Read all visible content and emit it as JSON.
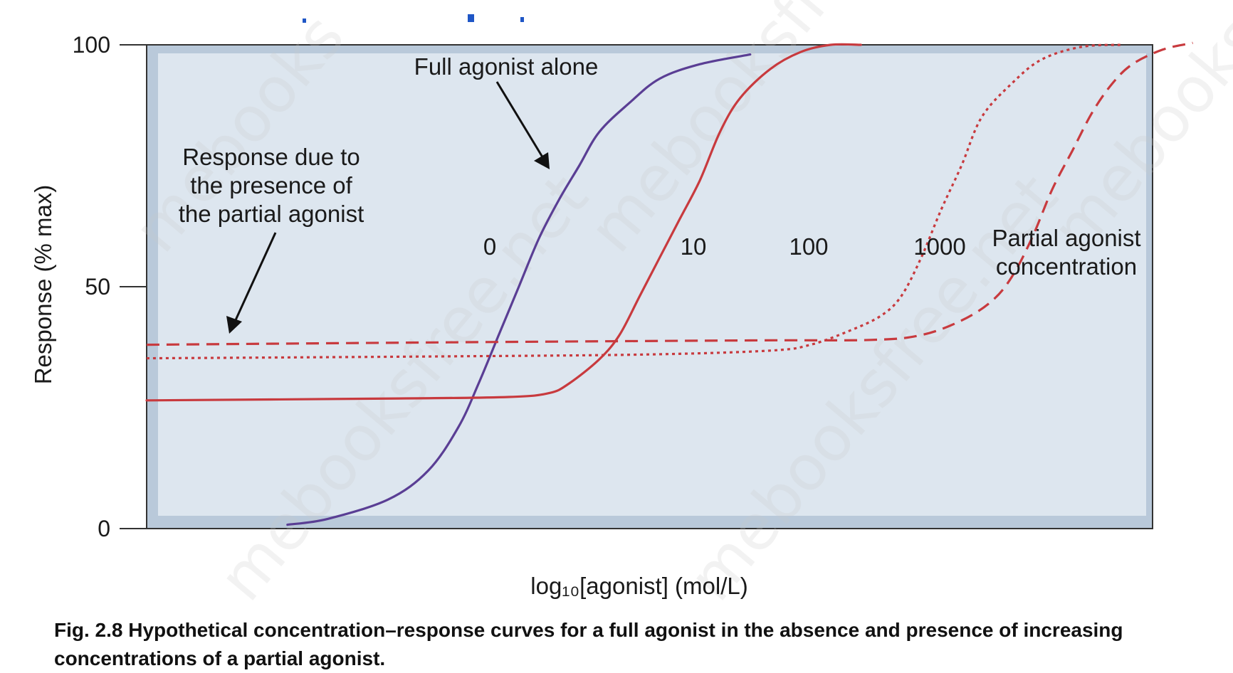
{
  "chart_data": {
    "type": "line",
    "xlabel": "log₁₀[agonist] (mol/L)",
    "ylabel": "Response (% max)",
    "ylim": [
      0,
      100
    ],
    "yticks": [
      0,
      50,
      100
    ],
    "grid": false,
    "series": [
      {
        "label": "0",
        "color": "#5a3e94",
        "style": "solid",
        "points": [
          [
            0.14,
            0.8
          ],
          [
            0.18,
            2
          ],
          [
            0.24,
            6
          ],
          [
            0.28,
            12
          ],
          [
            0.31,
            21
          ],
          [
            0.33,
            30
          ],
          [
            0.35,
            40
          ],
          [
            0.37,
            50
          ],
          [
            0.39,
            60
          ],
          [
            0.41,
            68
          ],
          [
            0.43,
            75
          ],
          [
            0.45,
            82
          ],
          [
            0.48,
            88
          ],
          [
            0.51,
            93
          ],
          [
            0.55,
            96
          ],
          [
            0.6,
            98
          ]
        ]
      },
      {
        "label": "10",
        "color": "#c83a3e",
        "style": "solid",
        "points": [
          [
            0.0,
            26.5
          ],
          [
            0.25,
            26.9
          ],
          [
            0.36,
            27.2
          ],
          [
            0.4,
            28
          ],
          [
            0.42,
            30
          ],
          [
            0.45,
            35
          ],
          [
            0.47,
            40
          ],
          [
            0.49,
            48
          ],
          [
            0.51,
            56
          ],
          [
            0.53,
            64
          ],
          [
            0.55,
            72
          ],
          [
            0.57,
            82
          ],
          [
            0.59,
            89
          ],
          [
            0.62,
            95
          ],
          [
            0.65,
            98.5
          ],
          [
            0.68,
            100
          ],
          [
            0.71,
            100
          ]
        ]
      },
      {
        "label": "100",
        "color": "#c83a3e",
        "style": "dotted",
        "points": [
          [
            0.0,
            35.2
          ],
          [
            0.3,
            35.6
          ],
          [
            0.5,
            36
          ],
          [
            0.62,
            36.8
          ],
          [
            0.66,
            38
          ],
          [
            0.7,
            41
          ],
          [
            0.73,
            44
          ],
          [
            0.75,
            48
          ],
          [
            0.77,
            56
          ],
          [
            0.79,
            66
          ],
          [
            0.81,
            75
          ],
          [
            0.83,
            85
          ],
          [
            0.86,
            92
          ],
          [
            0.89,
            97
          ],
          [
            0.93,
            99.6
          ],
          [
            0.97,
            100
          ]
        ]
      },
      {
        "label": "1000",
        "color": "#c83a3e",
        "style": "dashed",
        "points": [
          [
            0.0,
            38
          ],
          [
            0.3,
            38.5
          ],
          [
            0.6,
            38.9
          ],
          [
            0.72,
            39
          ],
          [
            0.77,
            40
          ],
          [
            0.81,
            43
          ],
          [
            0.84,
            47
          ],
          [
            0.86,
            52
          ],
          [
            0.88,
            60
          ],
          [
            0.9,
            70
          ],
          [
            0.92,
            78
          ],
          [
            0.94,
            86
          ],
          [
            0.96,
            92
          ],
          [
            0.98,
            96
          ],
          [
            1.01,
            99
          ],
          [
            1.04,
            100.4
          ]
        ]
      }
    ],
    "annotations": {
      "full_agonist": "Full agonist alone",
      "response_due": [
        "Response due to",
        "the presence of",
        "the partial agonist"
      ],
      "partial_conc": [
        "Partial agonist",
        "concentration"
      ]
    }
  },
  "watermark": [
    "mebooksfree.net",
    "mebooksfree.net",
    "mebooks",
    "mebooksfree.net",
    "mebooks"
  ],
  "caption": {
    "figure_label": "Fig. 2.8",
    "text": "Hypothetical concentration–response curves for a full agonist in the absence and presence of increasing concentrations of a partial agonist."
  },
  "colors": {
    "plot_bg": "#dde6ef",
    "plot_border": "#b9c9da",
    "frame": "#333333",
    "artifact_blue": "#1f56c6"
  }
}
